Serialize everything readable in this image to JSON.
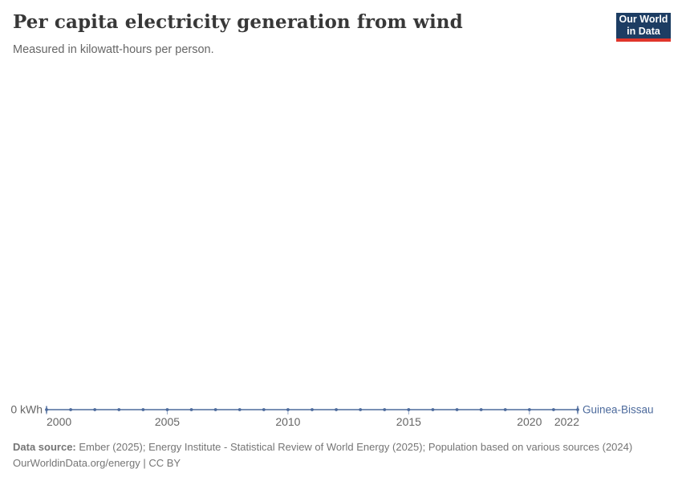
{
  "header": {
    "title": "Per capita electricity generation from wind",
    "subtitle": "Measured in kilowatt-hours per person.",
    "logo": {
      "line1": "Our World",
      "line2": "in Data"
    }
  },
  "chart_data": {
    "type": "line",
    "title": "Per capita electricity generation from wind",
    "subtitle": "Measured in kilowatt-hours per person.",
    "unit": "kilowatt-hours per person",
    "x": [
      2000,
      2001,
      2002,
      2003,
      2004,
      2005,
      2006,
      2007,
      2008,
      2009,
      2010,
      2011,
      2012,
      2013,
      2014,
      2015,
      2016,
      2017,
      2018,
      2019,
      2020,
      2021,
      2022
    ],
    "series": [
      {
        "name": "Guinea-Bissau",
        "values": [
          0,
          0,
          0,
          0,
          0,
          0,
          0,
          0,
          0,
          0,
          0,
          0,
          0,
          0,
          0,
          0,
          0,
          0,
          0,
          0,
          0,
          0,
          0
        ],
        "color": "#4c6a9c"
      }
    ],
    "x_tick_labels": [
      2000,
      2005,
      2010,
      2015,
      2020,
      2022
    ],
    "y_axis_tick": "0 kWh",
    "ylim": [
      0,
      0
    ],
    "grid": false,
    "legend": "entity label at right end of line",
    "marker": "point-per-year"
  },
  "colors": {
    "line": "#4c6a9c",
    "axis_text": "#666666",
    "logo_bg": "#1d3d63",
    "logo_red": "#e0352b",
    "footer_text": "#757575",
    "title_text": "#383838"
  },
  "footer": {
    "source_label": "Data source:",
    "source_text": "Ember (2025); Energy Institute - Statistical Review of World Energy (2025); Population based on various sources (2024)",
    "line2": "OurWorldinData.org/energy | CC BY"
  }
}
